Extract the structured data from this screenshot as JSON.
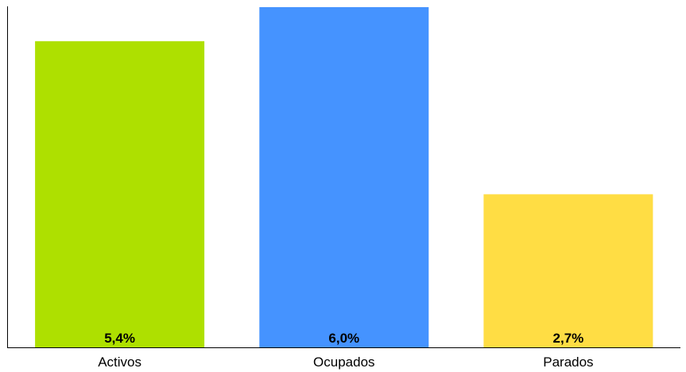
{
  "chart_data": {
    "type": "bar",
    "categories": [
      "Activos",
      "Ocupados",
      "Parados"
    ],
    "values": [
      5.4,
      6.0,
      2.7
    ],
    "data_labels": [
      "5,4%",
      "6,0%",
      "2,7%"
    ],
    "colors": [
      "#aee000",
      "#4593ff",
      "#ffdd44"
    ],
    "title": "",
    "xlabel": "",
    "ylabel": "",
    "ylim": [
      0,
      6.0
    ],
    "grid": false,
    "legend": "none",
    "y_tick_labels_shown": false
  }
}
